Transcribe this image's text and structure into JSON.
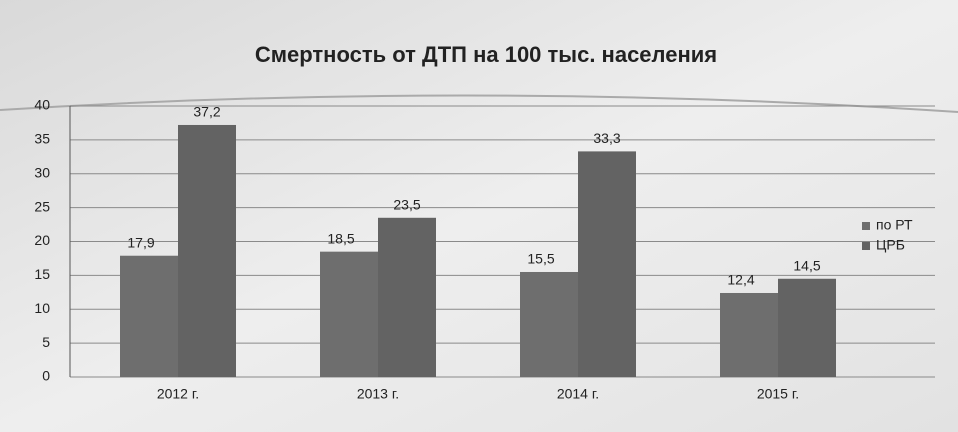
{
  "chart_data": {
    "type": "bar",
    "title": "Смертность от ДТП  на 100 тыс. населения",
    "categories": [
      "2012 г.",
      "2013 г.",
      "2014 г.",
      "2015 г."
    ],
    "series": [
      {
        "name": "по РТ",
        "color": "#6e6e6e",
        "values": [
          17.9,
          18.5,
          15.5,
          12.4
        ],
        "value_labels": [
          "17,9",
          "18,5",
          "15,5",
          "12,4"
        ]
      },
      {
        "name": "ЦРБ",
        "color": "#636363",
        "values": [
          37.2,
          23.5,
          33.3,
          14.5
        ],
        "value_labels": [
          "37,2",
          "23,5",
          "33,3",
          "14,5"
        ]
      }
    ],
    "ylim": [
      0,
      40
    ],
    "yticks": [
      0,
      5,
      10,
      15,
      20,
      25,
      30,
      35,
      40
    ],
    "grid": true,
    "legend": "right"
  }
}
